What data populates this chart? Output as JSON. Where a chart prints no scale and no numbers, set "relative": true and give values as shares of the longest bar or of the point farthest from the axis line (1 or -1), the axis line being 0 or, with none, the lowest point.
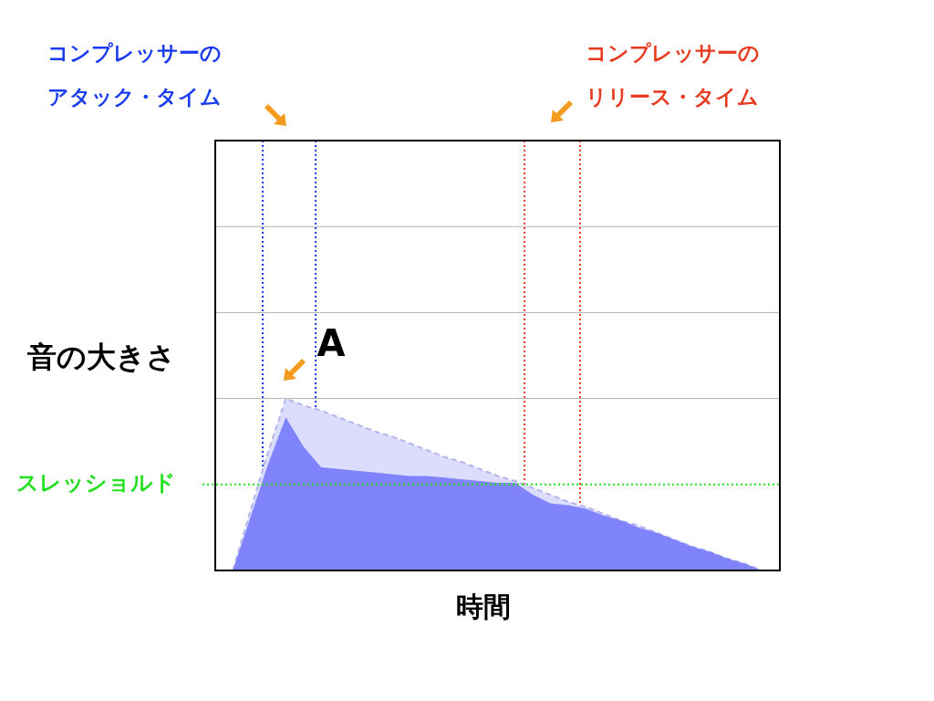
{
  "chart_data": {
    "type": "area",
    "relative": true,
    "xlabel": "時間",
    "ylabel": "音の大きさ",
    "categories": [
      null,
      null,
      null,
      null,
      null,
      null,
      null,
      null,
      null,
      null,
      null,
      null,
      null,
      null,
      null,
      null,
      null,
      null,
      null,
      null,
      null,
      null,
      null,
      null,
      null,
      null,
      null,
      null,
      null,
      null,
      null,
      null,
      null
    ],
    "tick_labels": false,
    "series": [
      {
        "color": "#dcdcfc",
        "line_style": "dashed",
        "values": [
          0,
          0,
          0.35,
          0.69,
          1,
          0.96,
          0.93,
          0.89,
          0.85,
          0.81,
          0.78,
          0.74,
          0.7,
          0.66,
          0.63,
          0.59,
          0.55,
          0.52,
          0.48,
          0.44,
          0.4,
          0.37,
          0.33,
          0.29,
          0.26,
          0.22,
          0.18,
          0.14,
          0.11,
          0.07,
          0.04,
          0,
          0
        ]
      },
      {
        "color": "#7f84fd",
        "values": [
          0,
          0,
          0.31,
          0.62,
          0.89,
          0.72,
          0.6,
          0.59,
          0.58,
          0.57,
          0.56,
          0.55,
          0.55,
          0.54,
          0.53,
          0.52,
          0.51,
          0.51,
          0.44,
          0.39,
          0.38,
          0.36,
          0.32,
          0.29,
          0.25,
          0.22,
          0.18,
          0.14,
          0.11,
          0.07,
          0.04,
          0,
          0
        ]
      }
    ],
    "ref_lines": [
      {
        "axis": "y",
        "value": 0.5,
        "label": "スレッショルド",
        "color": "#22e01e",
        "line_style": "dotted"
      }
    ],
    "annotations": [
      "コンプレッサーのアタック・タイム",
      "コンプレッサーのリリース・タイム",
      "A"
    ]
  }
}
